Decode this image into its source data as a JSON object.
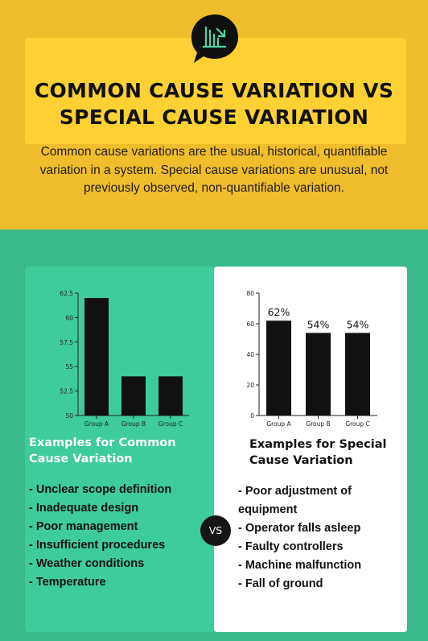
{
  "header": {
    "title_line1": "COMMON CAUSE VARIATION VS",
    "title_line2": "SPECIAL CAUSE VARIATION",
    "badge_icon": "chart-arrow-icon",
    "description": "Common cause variations are the usual, historical, quantifiable variation in a system. Special cause variations are unusual, not previously observed, non-quantifiable variation."
  },
  "colors": {
    "top_background": "#f0bd2c",
    "title_box": "#fdd034",
    "bottom_background": "#3ab98a",
    "left_card": "#3ecc9a",
    "right_card": "#ffffff",
    "bar": "#111111",
    "badge_icon": "#4fd6a4"
  },
  "common": {
    "heading_line1": "Examples for Common",
    "heading_line2": "Cause Variation",
    "items": [
      "- Unclear scope definition",
      "- Inadequate design",
      "- Poor management",
      "- Insufficient procedures",
      "- Weather conditions",
      "- Temperature"
    ]
  },
  "special": {
    "heading_line1": "Examples for Special",
    "heading_line2": "Cause Variation",
    "items": [
      "- Poor adjustment of",
      "equipment",
      "- Operator falls asleep",
      "- Faulty controllers",
      "- Machine malfunction",
      "- Fall of ground"
    ]
  },
  "vs_label": "VS",
  "chart_data": [
    {
      "type": "bar",
      "categories": [
        "Group A",
        "Group B",
        "Group C"
      ],
      "values": [
        62,
        54,
        54
      ],
      "ylim": [
        50,
        62.5
      ],
      "yticks": [
        "50",
        "52.5",
        "55",
        "57.5",
        "60",
        "62.5"
      ],
      "grid": false,
      "title": "",
      "xlabel": "",
      "ylabel": ""
    },
    {
      "type": "bar",
      "categories": [
        "Group A",
        "Group B",
        "Group C"
      ],
      "values": [
        62,
        54,
        54
      ],
      "data_labels": [
        "62%",
        "54%",
        "54%"
      ],
      "ylim": [
        0,
        80
      ],
      "yticks": [
        "0",
        "20",
        "40",
        "60",
        "80"
      ],
      "grid": false,
      "title": "",
      "xlabel": "",
      "ylabel": ""
    }
  ]
}
